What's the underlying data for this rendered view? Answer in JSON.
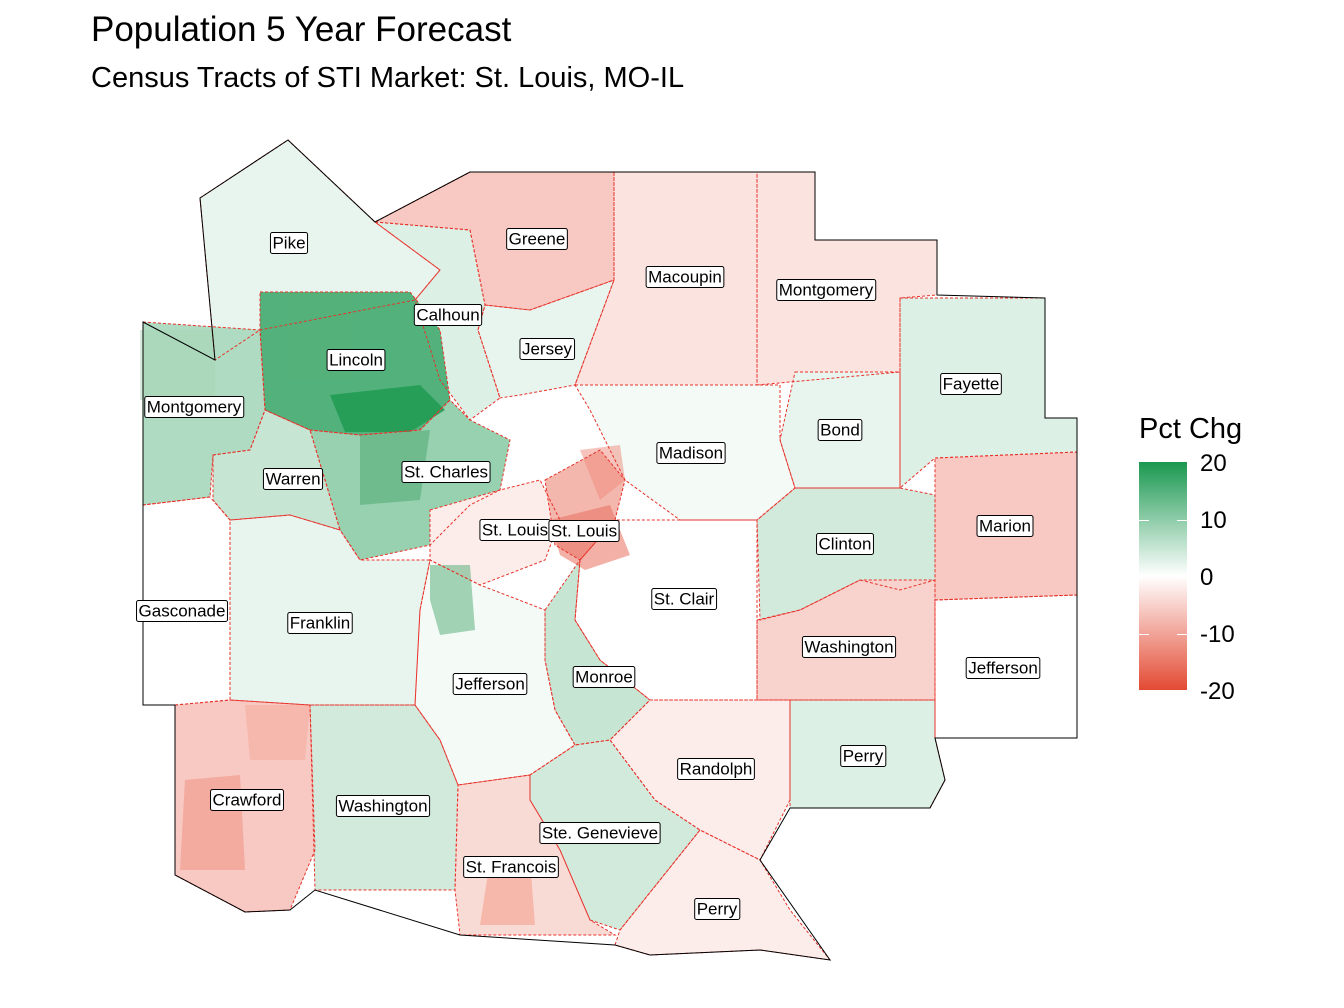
{
  "title": "Population 5 Year Forecast",
  "subtitle": "Census Tracts of STI Market: St. Louis, MO-IL",
  "legend": {
    "title": "Pct Chg",
    "ticks": [
      "20",
      "10",
      "0",
      "-10",
      "-20"
    ],
    "colors": {
      "high": "#1a9850",
      "mid": "#ffffff",
      "low": "#e34a33"
    }
  },
  "counties": [
    {
      "name": "Pike",
      "value": 2
    },
    {
      "name": "Greene",
      "value": -6
    },
    {
      "name": "Macoupin",
      "value": -3
    },
    {
      "name": "Montgomery",
      "value": -3
    },
    {
      "name": "Calhoun",
      "value": 3
    },
    {
      "name": "Jersey",
      "value": 2
    },
    {
      "name": "Lincoln",
      "value": 15
    },
    {
      "name": "Montgomery",
      "value": 7
    },
    {
      "name": "Fayette",
      "value": 3
    },
    {
      "name": "Bond",
      "value": 2
    },
    {
      "name": "Madison",
      "value": 1
    },
    {
      "name": "St. Charles",
      "value": 9
    },
    {
      "name": "Warren",
      "value": 5
    },
    {
      "name": "St. Louis",
      "value": -2
    },
    {
      "name": "St. Louis",
      "value": -8
    },
    {
      "name": "Marion",
      "value": -6
    },
    {
      "name": "Clinton",
      "value": 4
    },
    {
      "name": "St. Clair",
      "value": 0
    },
    {
      "name": "Gasconade",
      "value": 0
    },
    {
      "name": "Franklin",
      "value": 2
    },
    {
      "name": "Washington",
      "value": -5
    },
    {
      "name": "Jefferson",
      "value": 1
    },
    {
      "name": "Monroe",
      "value": 5
    },
    {
      "name": "Jefferson",
      "value": 0
    },
    {
      "name": "Randolph",
      "value": -2
    },
    {
      "name": "Perry",
      "value": 3
    },
    {
      "name": "Crawford",
      "value": -6
    },
    {
      "name": "Washington",
      "value": 4
    },
    {
      "name": "Ste. Genevieve",
      "value": 4
    },
    {
      "name": "St. Francois",
      "value": -4
    },
    {
      "name": "Perry",
      "value": -2
    }
  ]
}
